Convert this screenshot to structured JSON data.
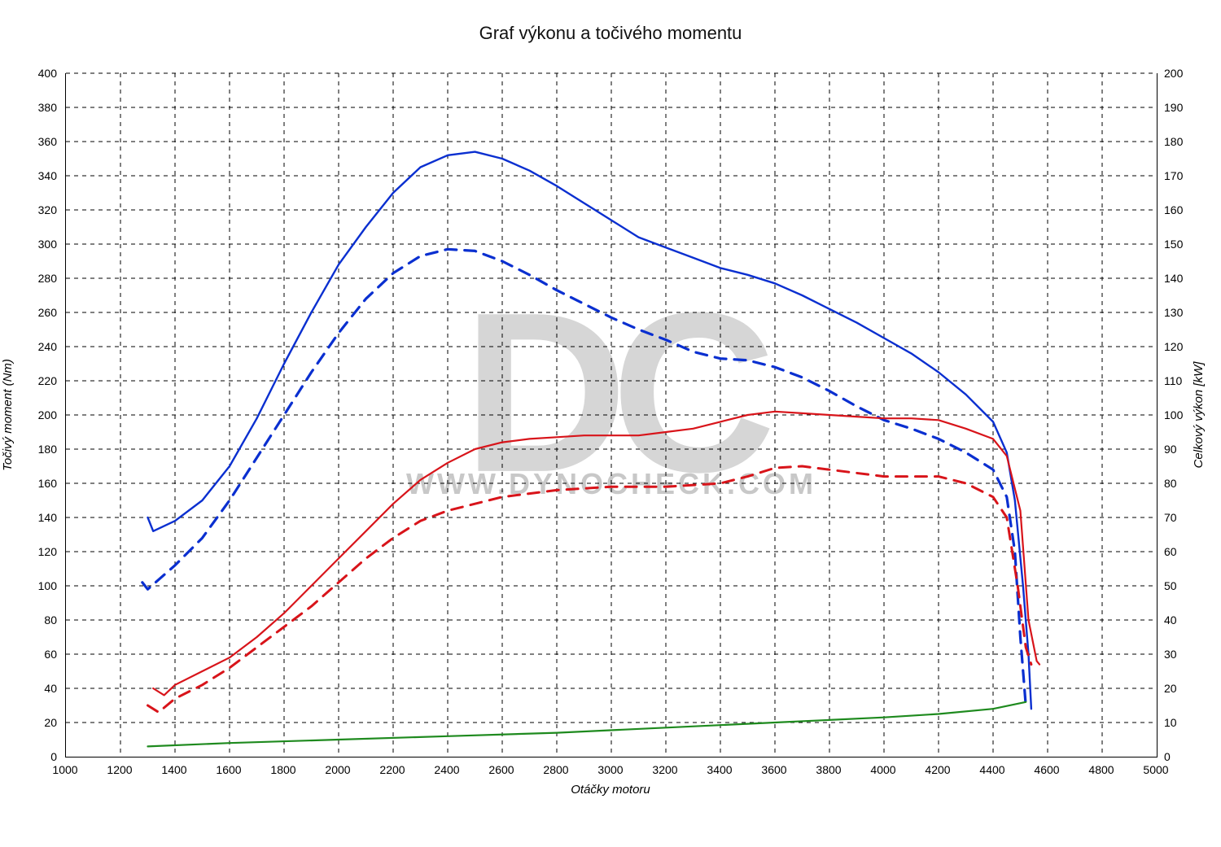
{
  "chart": {
    "type": "line",
    "title": "Graf výkonu a točivého momentu",
    "title_fontsize": 22,
    "x_label": "Otáčky motoru",
    "y_left_label": "Točivý moment (Nm)",
    "y_right_label": "Celkový výkon [kW]",
    "label_fontsize": 15,
    "tick_fontsize": 14,
    "background_color": "#ffffff",
    "grid_color": "#000000",
    "grid_dash": "5 5",
    "border_color": "#000000",
    "watermark": {
      "big_text": "DC",
      "url_text": "WWW.DYNOCHECK.COM",
      "big_color": "#d6d6d6",
      "url_color": "#c8c8c8",
      "big_fontsize": 280,
      "url_fontsize": 36
    },
    "x_axis": {
      "min": 1000,
      "max": 5000,
      "tick_step": 200
    },
    "y_left": {
      "min": 0,
      "max": 400,
      "tick_step": 20
    },
    "y_right": {
      "min": 0,
      "max": 200,
      "tick_step": 10
    },
    "series": [
      {
        "name": "torque_tuned",
        "axis": "left",
        "color": "#0a2fd0",
        "width": 2.4,
        "dash": null,
        "x": [
          1300,
          1320,
          1400,
          1500,
          1600,
          1700,
          1800,
          1900,
          2000,
          2100,
          2200,
          2300,
          2400,
          2500,
          2600,
          2700,
          2800,
          2900,
          3000,
          3100,
          3200,
          3300,
          3400,
          3500,
          3600,
          3700,
          3800,
          3900,
          4000,
          4100,
          4200,
          4300,
          4400,
          4450,
          4480,
          4510,
          4530,
          4540
        ],
        "y": [
          140,
          132,
          138,
          150,
          170,
          198,
          230,
          260,
          288,
          310,
          330,
          345,
          352,
          354,
          350,
          343,
          334,
          324,
          314,
          304,
          298,
          292,
          286,
          282,
          277,
          270,
          262,
          254,
          245,
          236,
          225,
          212,
          196,
          178,
          150,
          100,
          60,
          28
        ]
      },
      {
        "name": "torque_stock",
        "axis": "left",
        "color": "#0a2fd0",
        "width": 3.2,
        "dash": "14 10",
        "x": [
          1280,
          1300,
          1400,
          1500,
          1600,
          1700,
          1800,
          1900,
          2000,
          2100,
          2200,
          2300,
          2400,
          2500,
          2600,
          2700,
          2800,
          2900,
          3000,
          3100,
          3200,
          3300,
          3400,
          3500,
          3600,
          3700,
          3800,
          3900,
          4000,
          4100,
          4200,
          4300,
          4400,
          4450,
          4480,
          4500,
          4520
        ],
        "y": [
          102,
          98,
          112,
          128,
          150,
          175,
          200,
          225,
          248,
          268,
          283,
          293,
          297,
          296,
          290,
          282,
          273,
          265,
          257,
          250,
          244,
          237,
          233,
          232,
          228,
          222,
          214,
          205,
          197,
          192,
          186,
          178,
          168,
          152,
          120,
          70,
          30
        ]
      },
      {
        "name": "power_tuned",
        "axis": "right",
        "color": "#d8141a",
        "width": 2.2,
        "dash": null,
        "x": [
          1320,
          1360,
          1400,
          1500,
          1600,
          1700,
          1800,
          1900,
          2000,
          2100,
          2200,
          2300,
          2400,
          2500,
          2600,
          2700,
          2800,
          2900,
          3000,
          3100,
          3200,
          3300,
          3400,
          3500,
          3600,
          3700,
          3800,
          3900,
          4000,
          4100,
          4200,
          4300,
          4400,
          4450,
          4500,
          4530,
          4560,
          4570
        ],
        "y": [
          20,
          18,
          21,
          25,
          29,
          35,
          42,
          50,
          58,
          66,
          74,
          81,
          86,
          90,
          92,
          93,
          93.5,
          94,
          94,
          94,
          95,
          96,
          98,
          100,
          101,
          100.5,
          100,
          99.5,
          99,
          99,
          98.5,
          96,
          93,
          88,
          72,
          40,
          28,
          27
        ]
      },
      {
        "name": "power_stock",
        "axis": "right",
        "color": "#d8141a",
        "width": 3.0,
        "dash": "14 10",
        "x": [
          1300,
          1340,
          1400,
          1500,
          1600,
          1700,
          1800,
          1900,
          2000,
          2100,
          2200,
          2300,
          2400,
          2500,
          2600,
          2700,
          2800,
          2900,
          3000,
          3100,
          3200,
          3300,
          3400,
          3500,
          3600,
          3700,
          3800,
          3900,
          4000,
          4100,
          4200,
          4300,
          4400,
          4450,
          4490,
          4520,
          4540
        ],
        "y": [
          15,
          13,
          17,
          21,
          26,
          32,
          38,
          44,
          51,
          58,
          64,
          69,
          72,
          74,
          76,
          77,
          78,
          78.5,
          79,
          79,
          79,
          79.5,
          80,
          82,
          84.5,
          85,
          84,
          83,
          82,
          82,
          82,
          80,
          76,
          70,
          50,
          32,
          27
        ]
      },
      {
        "name": "losses",
        "axis": "right",
        "color": "#1e8a1e",
        "width": 2.2,
        "dash": null,
        "x": [
          1300,
          1600,
          2000,
          2400,
          2800,
          3200,
          3600,
          4000,
          4200,
          4400,
          4520
        ],
        "y": [
          3,
          4,
          5,
          6,
          7,
          8.5,
          10,
          11.5,
          12.5,
          14,
          16
        ]
      }
    ]
  }
}
